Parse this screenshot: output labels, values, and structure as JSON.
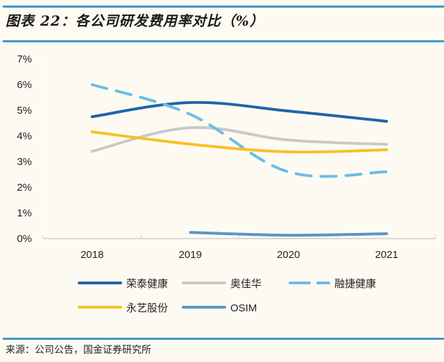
{
  "header": {
    "title": "图表 22：各公司研发费用率对比（%）"
  },
  "footer": {
    "source": "来源：公司公告，国金证券研究所"
  },
  "chart_data": {
    "type": "line",
    "title": "各公司研发费用率对比（%）",
    "xlabel": "",
    "ylabel": "",
    "categories": [
      "2018",
      "2019",
      "2020",
      "2021"
    ],
    "yticks": [
      "0%",
      "1%",
      "2%",
      "3%",
      "4%",
      "5%",
      "6%",
      "7%"
    ],
    "ylim": [
      0,
      7
    ],
    "grid": false,
    "legend_position": "bottom",
    "series": [
      {
        "name": "荣泰健康",
        "values": [
          4.75,
          5.3,
          4.97,
          4.57
        ],
        "color": "#1f65a8",
        "dashed": false
      },
      {
        "name": "奥佳华",
        "values": [
          3.4,
          4.32,
          3.84,
          3.67
        ],
        "color": "#c9c9c9",
        "dashed": false
      },
      {
        "name": "融捷健康",
        "values": [
          6.0,
          4.84,
          2.6,
          2.6
        ],
        "color": "#6bbde6",
        "dashed": true
      },
      {
        "name": "永艺股份",
        "values": [
          4.16,
          3.68,
          3.38,
          3.46
        ],
        "color": "#fbbf24",
        "dashed": false
      },
      {
        "name": "OSIM",
        "values": [
          null,
          0.24,
          0.13,
          0.19
        ],
        "color": "#5b93cc",
        "dashed": false
      }
    ]
  }
}
